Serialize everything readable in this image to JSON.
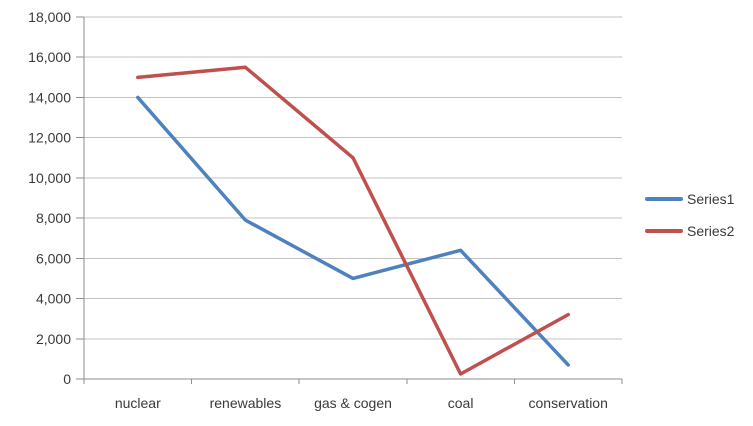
{
  "chart_data": {
    "type": "line",
    "title": "",
    "xlabel": "",
    "ylabel": "",
    "categories": [
      "nuclear",
      "renewables",
      "gas & cogen",
      "coal",
      "conservation"
    ],
    "series": [
      {
        "name": "Series1",
        "color": "#4F81BD",
        "values": [
          14000,
          7900,
          5000,
          6400,
          700
        ]
      },
      {
        "name": "Series2",
        "color": "#C0504D",
        "values": [
          15000,
          15500,
          11000,
          250,
          3200
        ]
      }
    ],
    "ylim": [
      0,
      18000
    ],
    "ytick_step": 2000,
    "ytick_labels": [
      "0",
      "2,000",
      "4,000",
      "6,000",
      "8,000",
      "10,000",
      "12,000",
      "14,000",
      "16,000",
      "18,000"
    ],
    "grid": true,
    "legend_position": "right"
  },
  "colors": {
    "background": "#FFFFFF",
    "gridline": "#C3C3C3",
    "axis": "#8E8E8E",
    "text": "#3A3A3A"
  }
}
